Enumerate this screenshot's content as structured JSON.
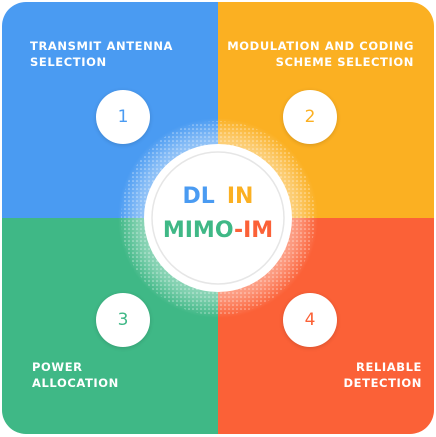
{
  "colors": {
    "quad1": "#4a9bf2",
    "quad2": "#fbb022",
    "quad3": "#3fb886",
    "quad4": "#fb6137",
    "dl": "#4a9bf2",
    "in": "#fbb022",
    "mimo": "#3fb886",
    "dash": "#fb6137",
    "im": "#fb6137"
  },
  "steps": [
    {
      "number": "1",
      "label_line1": "TRANSMIT ANTENNA",
      "label_line2": "SELECTION"
    },
    {
      "number": "2",
      "label_line1": "MODULATION AND CODING",
      "label_line2": "SCHEME SELECTION"
    },
    {
      "number": "3",
      "label_line1": "POWER",
      "label_line2": "ALLOCATION"
    },
    {
      "number": "4",
      "label_line1": "RELIABLE",
      "label_line2": "DETECTION"
    }
  ],
  "center": {
    "word_dl": "DL",
    "word_in": "IN",
    "word_mimo": "MIMO",
    "dash": "-",
    "word_im": "IM"
  }
}
